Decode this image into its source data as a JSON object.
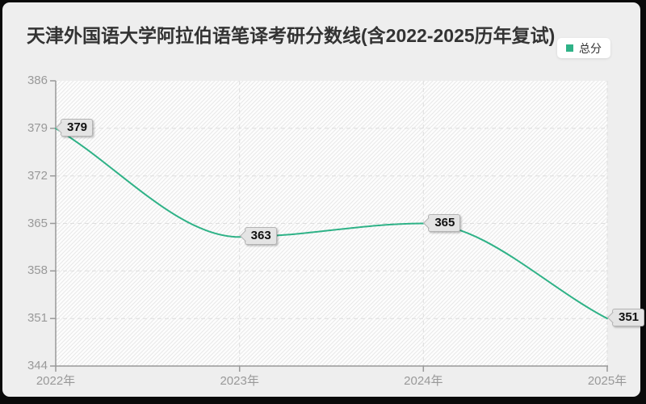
{
  "title": "天津外国语大学阿拉伯语笔译考研分数线(含2022-2025历年复试)",
  "legend": {
    "label": "总分",
    "marker_color": "#2fb287"
  },
  "colors": {
    "accent": "#2fb287",
    "frame": "#0a0a0a",
    "panel_bg": "#eeeeee",
    "plot_bg": "#fdfdfd",
    "hatch": "#e9e9e9",
    "grid": "#dedede",
    "axis": "#999999",
    "tick_label": "#999999",
    "title_text": "#333333",
    "badge_bg": "#e4e4e4",
    "badge_border": "#b4b4b4"
  },
  "chart_data": {
    "type": "line",
    "title": "天津外国语大学阿拉伯语笔译考研分数线(含2022-2025历年复试)",
    "categories": [
      "2022年",
      "2023年",
      "2024年",
      "2025年"
    ],
    "series": [
      {
        "name": "总分",
        "values": [
          379,
          363,
          365,
          351
        ],
        "color": "#2fb287"
      }
    ],
    "point_labels": [
      "379",
      "363",
      "365",
      "351"
    ],
    "xlabel": "",
    "ylabel": "",
    "ylim": [
      344,
      386
    ],
    "ytick_step": 7,
    "yticks": [
      344,
      351,
      358,
      365,
      372,
      379,
      386
    ],
    "grid": true,
    "grid_style": "dashed",
    "smooth": true,
    "legend_position": "top-right"
  }
}
